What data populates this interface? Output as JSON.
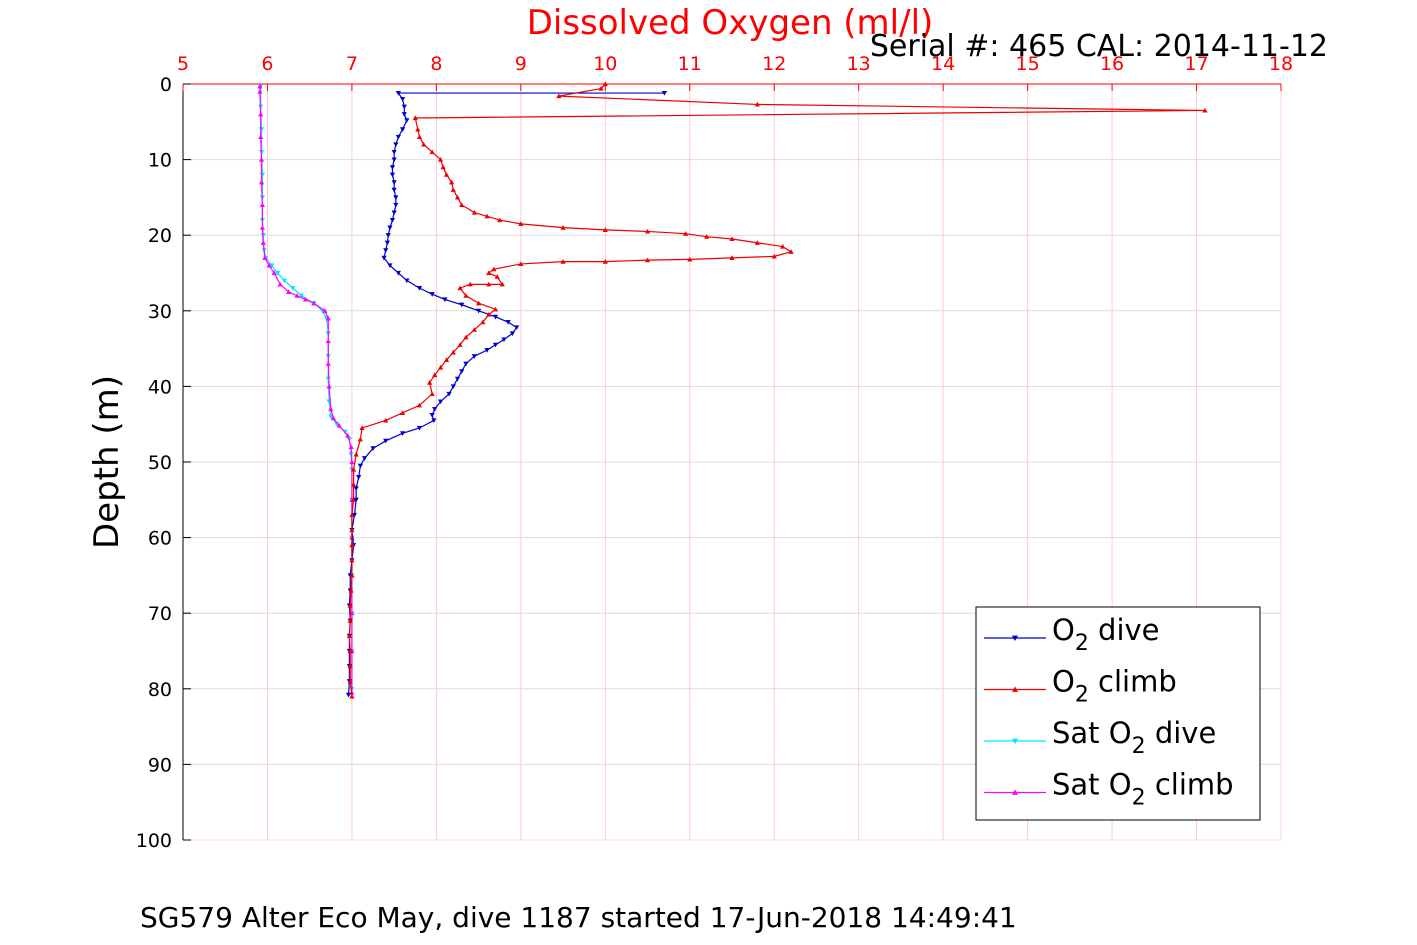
{
  "chart_data": {
    "type": "line",
    "title": "Dissolved Oxygen (ml/l)",
    "subtitle": "Serial #: 465  CAL: 2014-11-12",
    "caption": "SG579 Alter Eco May, dive 1187 started 17-Jun-2018 14:49:41",
    "xlabel": "Dissolved Oxygen (ml/l)",
    "ylabel": "Depth (m)",
    "xlim": [
      5,
      18
    ],
    "ylim": [
      0,
      100
    ],
    "y_reversed": true,
    "x_axis_position": "top",
    "grid": true,
    "legend_position": "bottom-right",
    "xticks": [
      "5",
      "6",
      "7",
      "8",
      "9",
      "10",
      "11",
      "12",
      "13",
      "14",
      "15",
      "16",
      "17",
      "18"
    ],
    "yticks": [
      "0",
      "10",
      "20",
      "30",
      "40",
      "50",
      "60",
      "70",
      "80",
      "90",
      "100"
    ],
    "colors": {
      "title": "#ff0000",
      "xaxis": "#ff0000",
      "grid_x": "#ffc8d8",
      "grid_y": "#dcdcdc"
    },
    "series": [
      {
        "name_text": "O",
        "name_sub": "2",
        "name_suffix": " dive",
        "color": "#0000cc",
        "marker": "down",
        "points": [
          [
            10.7,
            1.2
          ],
          [
            7.55,
            1.2
          ],
          [
            7.6,
            2
          ],
          [
            7.62,
            3
          ],
          [
            7.62,
            4
          ],
          [
            7.65,
            4.8
          ],
          [
            7.6,
            6
          ],
          [
            7.55,
            7
          ],
          [
            7.52,
            8
          ],
          [
            7.5,
            9
          ],
          [
            7.5,
            10
          ],
          [
            7.48,
            11
          ],
          [
            7.48,
            12
          ],
          [
            7.5,
            13
          ],
          [
            7.5,
            14
          ],
          [
            7.52,
            15
          ],
          [
            7.52,
            16
          ],
          [
            7.5,
            17
          ],
          [
            7.48,
            18
          ],
          [
            7.45,
            19
          ],
          [
            7.43,
            20
          ],
          [
            7.42,
            21
          ],
          [
            7.4,
            22
          ],
          [
            7.38,
            23
          ],
          [
            7.45,
            24
          ],
          [
            7.55,
            25
          ],
          [
            7.65,
            26
          ],
          [
            7.8,
            27
          ],
          [
            7.95,
            27.8
          ],
          [
            8.1,
            28.5
          ],
          [
            8.3,
            29.2
          ],
          [
            8.5,
            30
          ],
          [
            8.7,
            30.8
          ],
          [
            8.85,
            31.5
          ],
          [
            8.95,
            32.2
          ],
          [
            8.9,
            33
          ],
          [
            8.8,
            33.8
          ],
          [
            8.7,
            34.5
          ],
          [
            8.6,
            35.2
          ],
          [
            8.45,
            36
          ],
          [
            8.35,
            37
          ],
          [
            8.3,
            38
          ],
          [
            8.25,
            39
          ],
          [
            8.2,
            40
          ],
          [
            8.15,
            41
          ],
          [
            8.05,
            42
          ],
          [
            7.98,
            43
          ],
          [
            7.95,
            43.8
          ],
          [
            7.97,
            44.5
          ],
          [
            7.8,
            45.5
          ],
          [
            7.6,
            46.2
          ],
          [
            7.4,
            47.2
          ],
          [
            7.25,
            48.2
          ],
          [
            7.15,
            49.5
          ],
          [
            7.1,
            50.5
          ],
          [
            7.08,
            52
          ],
          [
            7.05,
            53.5
          ],
          [
            7.05,
            55
          ],
          [
            7.03,
            57
          ],
          [
            7.0,
            59
          ],
          [
            7.02,
            61
          ],
          [
            7.0,
            63
          ],
          [
            6.98,
            65
          ],
          [
            6.98,
            67
          ],
          [
            6.97,
            69
          ],
          [
            6.98,
            71
          ],
          [
            6.97,
            73
          ],
          [
            6.97,
            75
          ],
          [
            6.97,
            77
          ],
          [
            6.97,
            79
          ],
          [
            6.96,
            80.8
          ]
        ]
      },
      {
        "name_text": "O",
        "name_sub": "2",
        "name_suffix": " climb",
        "color": "#ee0000",
        "marker": "up",
        "points": [
          [
            7.0,
            81
          ],
          [
            6.98,
            79
          ],
          [
            6.98,
            77
          ],
          [
            6.98,
            75
          ],
          [
            6.97,
            73
          ],
          [
            6.98,
            71
          ],
          [
            6.98,
            69
          ],
          [
            6.99,
            67
          ],
          [
            7.0,
            65
          ],
          [
            7.0,
            63
          ],
          [
            7.0,
            61
          ],
          [
            7.0,
            59
          ],
          [
            7.0,
            57
          ],
          [
            7.02,
            55
          ],
          [
            7.02,
            53
          ],
          [
            7.02,
            51
          ],
          [
            7.05,
            49
          ],
          [
            7.1,
            47
          ],
          [
            7.12,
            45.5
          ],
          [
            7.4,
            44.5
          ],
          [
            7.6,
            43.5
          ],
          [
            7.8,
            42.5
          ],
          [
            7.95,
            41
          ],
          [
            7.92,
            39.5
          ],
          [
            7.98,
            38.5
          ],
          [
            8.05,
            37.5
          ],
          [
            8.12,
            36.5
          ],
          [
            8.2,
            35.5
          ],
          [
            8.28,
            34.5
          ],
          [
            8.35,
            33.5
          ],
          [
            8.45,
            32.5
          ],
          [
            8.55,
            31.5
          ],
          [
            8.62,
            30.5
          ],
          [
            8.7,
            29.8
          ],
          [
            8.5,
            29
          ],
          [
            8.35,
            28
          ],
          [
            8.28,
            27
          ],
          [
            8.4,
            26.5
          ],
          [
            8.62,
            26.5
          ],
          [
            8.78,
            26.5
          ],
          [
            8.72,
            25.5
          ],
          [
            8.62,
            25
          ],
          [
            8.68,
            24.5
          ],
          [
            9.0,
            23.8
          ],
          [
            9.5,
            23.5
          ],
          [
            10.0,
            23.5
          ],
          [
            10.5,
            23.3
          ],
          [
            11.0,
            23.2
          ],
          [
            11.5,
            23.0
          ],
          [
            12.0,
            22.8
          ],
          [
            12.2,
            22.2
          ],
          [
            12.1,
            21.5
          ],
          [
            11.8,
            21
          ],
          [
            11.5,
            20.5
          ],
          [
            11.2,
            20.2
          ],
          [
            10.95,
            19.8
          ],
          [
            10.5,
            19.5
          ],
          [
            10.0,
            19.3
          ],
          [
            9.5,
            19.0
          ],
          [
            9.0,
            18.5
          ],
          [
            8.75,
            18
          ],
          [
            8.6,
            17.5
          ],
          [
            8.45,
            17
          ],
          [
            8.3,
            16
          ],
          [
            8.25,
            15
          ],
          [
            8.2,
            14
          ],
          [
            8.18,
            13
          ],
          [
            8.12,
            12
          ],
          [
            8.08,
            11
          ],
          [
            8.05,
            10
          ],
          [
            7.95,
            9
          ],
          [
            7.85,
            8
          ],
          [
            7.8,
            7
          ],
          [
            7.78,
            6
          ],
          [
            7.75,
            4.5
          ],
          [
            17.1,
            3.5
          ],
          [
            11.8,
            2.7
          ],
          [
            9.45,
            1.6
          ],
          [
            9.95,
            0.6
          ],
          [
            10.0,
            0
          ]
        ]
      },
      {
        "name_text": "Sat O",
        "name_sub": "2",
        "name_suffix": " dive",
        "color": "#00e5ff",
        "marker": "down",
        "points": [
          [
            5.92,
            0.3
          ],
          [
            5.92,
            3
          ],
          [
            5.93,
            6
          ],
          [
            5.93,
            9
          ],
          [
            5.94,
            12
          ],
          [
            5.94,
            15
          ],
          [
            5.94,
            18
          ],
          [
            5.95,
            20
          ],
          [
            5.96,
            22
          ],
          [
            5.98,
            23
          ],
          [
            6.05,
            24
          ],
          [
            6.12,
            25
          ],
          [
            6.2,
            26
          ],
          [
            6.3,
            27
          ],
          [
            6.4,
            28
          ],
          [
            6.55,
            29
          ],
          [
            6.65,
            30
          ],
          [
            6.7,
            31
          ],
          [
            6.72,
            33
          ],
          [
            6.72,
            36
          ],
          [
            6.72,
            39
          ],
          [
            6.73,
            42
          ],
          [
            6.75,
            44
          ],
          [
            6.82,
            45
          ],
          [
            6.92,
            46
          ],
          [
            6.97,
            47
          ],
          [
            6.99,
            49
          ],
          [
            7.0,
            51
          ],
          [
            7.0,
            55
          ],
          [
            7.0,
            60
          ],
          [
            7.0,
            65
          ],
          [
            7.0,
            70
          ],
          [
            7.0,
            75
          ],
          [
            7.0,
            80
          ]
        ]
      },
      {
        "name_text": "Sat O",
        "name_sub": "2",
        "name_suffix": " climb",
        "color": "#ff00ff",
        "marker": "up",
        "points": [
          [
            7.0,
            80.5
          ],
          [
            7.0,
            75
          ],
          [
            7.0,
            70
          ],
          [
            7.0,
            65
          ],
          [
            7.0,
            60
          ],
          [
            7.0,
            55
          ],
          [
            7.0,
            50
          ],
          [
            6.99,
            48
          ],
          [
            6.95,
            46.5
          ],
          [
            6.85,
            45.2
          ],
          [
            6.78,
            44.2
          ],
          [
            6.75,
            43
          ],
          [
            6.73,
            40
          ],
          [
            6.72,
            37
          ],
          [
            6.72,
            34
          ],
          [
            6.72,
            31
          ],
          [
            6.68,
            30
          ],
          [
            6.55,
            29
          ],
          [
            6.45,
            28.5
          ],
          [
            6.35,
            28
          ],
          [
            6.25,
            27.5
          ],
          [
            6.15,
            26.5
          ],
          [
            6.08,
            25
          ],
          [
            6.02,
            24
          ],
          [
            5.97,
            23
          ],
          [
            5.95,
            21
          ],
          [
            5.94,
            19
          ],
          [
            5.94,
            16
          ],
          [
            5.93,
            13
          ],
          [
            5.93,
            10
          ],
          [
            5.92,
            7
          ],
          [
            5.92,
            4
          ],
          [
            5.91,
            1
          ],
          [
            5.91,
            0.3
          ]
        ]
      }
    ]
  }
}
